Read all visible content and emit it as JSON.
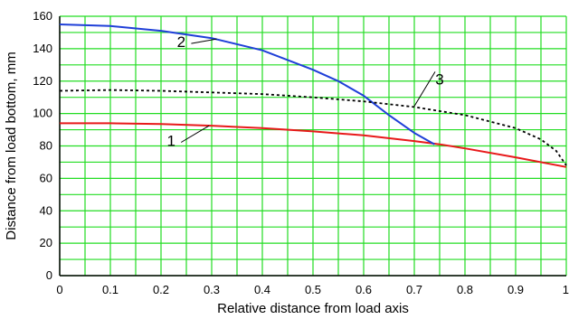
{
  "chart_data": {
    "type": "line",
    "xlabel": "Relative distance from load axis",
    "ylabel": "Distance from load bottom, mm",
    "xlim": [
      0,
      1
    ],
    "ylim": [
      0,
      160
    ],
    "x_ticks": [
      "0",
      "0.1",
      "0.2",
      "0.3",
      "0.4",
      "0.5",
      "0.6",
      "0.7",
      "0.8",
      "0.9",
      "1"
    ],
    "y_ticks": [
      "0",
      "20",
      "40",
      "60",
      "80",
      "100",
      "120",
      "140",
      "160"
    ],
    "grid": true,
    "grid_color": "#22dd22",
    "series": [
      {
        "name": "1",
        "color": "#e8191a",
        "style": "solid",
        "x": [
          0,
          0.1,
          0.2,
          0.3,
          0.4,
          0.5,
          0.6,
          0.7,
          0.75,
          0.8,
          0.9,
          1.0
        ],
        "y": [
          94,
          94,
          93.5,
          92.5,
          91,
          89,
          86.5,
          83,
          81,
          78.5,
          73,
          67
        ]
      },
      {
        "name": "2",
        "color": "#1f3fd8",
        "style": "solid",
        "x": [
          0,
          0.1,
          0.2,
          0.3,
          0.4,
          0.5,
          0.55,
          0.6,
          0.65,
          0.7,
          0.74
        ],
        "y": [
          155,
          154,
          151,
          146.5,
          139,
          127,
          120,
          111,
          99,
          88,
          81
        ]
      },
      {
        "name": "3",
        "color": "#000000",
        "style": "dashed",
        "x": [
          0,
          0.1,
          0.2,
          0.3,
          0.4,
          0.5,
          0.6,
          0.7,
          0.8,
          0.9,
          0.95,
          0.98,
          1.0
        ],
        "y": [
          114,
          114.5,
          114,
          113,
          112,
          110,
          107.5,
          104,
          99,
          91,
          84,
          77,
          68
        ]
      }
    ],
    "callouts": [
      {
        "label": "1",
        "series": "1",
        "text_x": 0.22,
        "text_y": 80,
        "end_x": 0.295,
        "end_y": 92.5
      },
      {
        "label": "2",
        "series": "2",
        "text_x": 0.24,
        "text_y": 141,
        "end_x": 0.31,
        "end_y": 146
      },
      {
        "label": "3",
        "series": "3",
        "text_x": 0.75,
        "text_y": 118,
        "end_x": 0.7,
        "end_y": 104.5
      }
    ]
  }
}
